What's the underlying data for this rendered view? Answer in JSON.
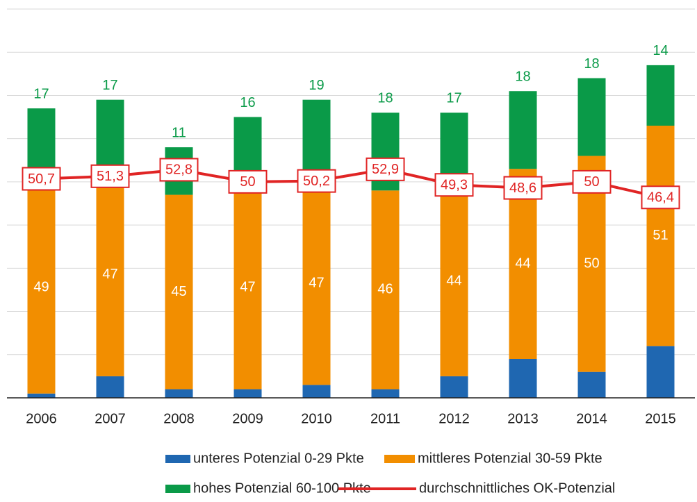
{
  "chart_data": {
    "type": "bar",
    "categories": [
      "2006",
      "2007",
      "2008",
      "2009",
      "2010",
      "2011",
      "2012",
      "2013",
      "2014",
      "2015"
    ],
    "series": [
      {
        "name": "unteres Potenzial 0-29 Pkte",
        "color": "#1f67b1",
        "values": [
          1,
          5,
          2,
          2,
          3,
          2,
          5,
          9,
          6,
          12
        ]
      },
      {
        "name": "mittleres Potenzial 30-59 Pkte",
        "color": "#f28e00",
        "values": [
          49,
          47,
          45,
          47,
          47,
          46,
          44,
          44,
          50,
          51
        ]
      },
      {
        "name": "hohes Potenzial 60-100 Pkte",
        "color": "#0a9a48",
        "values": [
          17,
          17,
          11,
          16,
          19,
          18,
          17,
          18,
          18,
          14
        ]
      },
      {
        "name": "durchschnittliches OK-Potenzial",
        "type": "line",
        "color": "#e02424",
        "values": [
          50.7,
          51.3,
          52.8,
          50,
          50.2,
          52.9,
          49.3,
          48.6,
          50,
          46.4
        ],
        "value_labels": [
          "50,7",
          "51,3",
          "52,8",
          "50",
          "50,2",
          "52,9",
          "49,3",
          "48,6",
          "50",
          "46,4"
        ]
      }
    ],
    "ylim": [
      0,
      90
    ],
    "yticks": [
      0,
      10,
      20,
      30,
      40,
      50,
      60,
      70,
      80,
      90
    ],
    "grid": true,
    "stacked": true,
    "legend": "bottom"
  }
}
